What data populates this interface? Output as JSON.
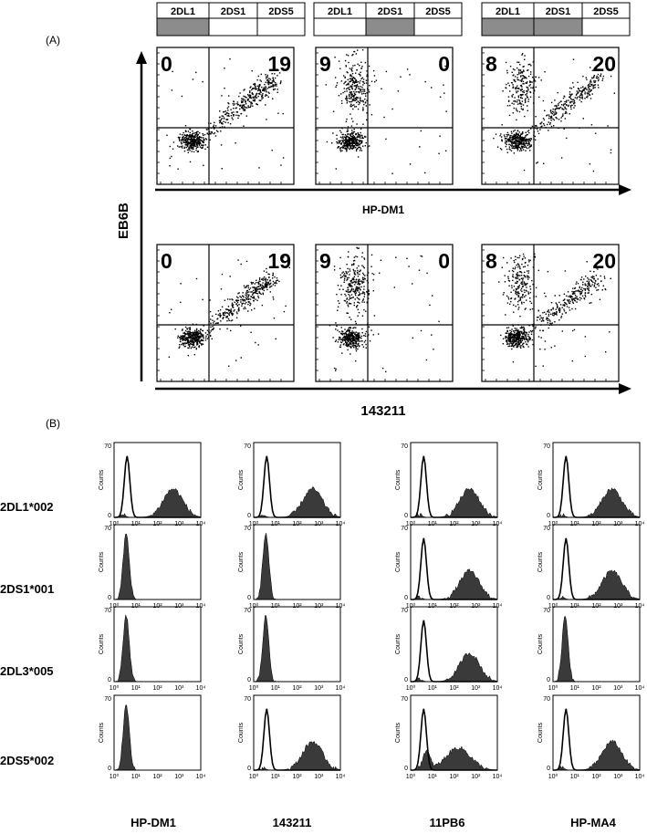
{
  "panel_a": {
    "label": "(A)",
    "y_axis_label": "EB6B",
    "rows": [
      {
        "x_axis_label": "HP-DM1"
      },
      {
        "x_axis_label": "143211"
      }
    ],
    "header_cells": [
      "2DL1",
      "2DS1",
      "2DS5"
    ],
    "columns": [
      {
        "shaded": [
          true,
          false,
          false
        ],
        "quadrant_ul": "0",
        "quadrant_ur": "19",
        "pattern": "diagonal"
      },
      {
        "shaded": [
          false,
          true,
          false
        ],
        "quadrant_ul": "9",
        "quadrant_ur": "0",
        "pattern": "vertical"
      },
      {
        "shaded": [
          true,
          true,
          false
        ],
        "quadrant_ul": "8",
        "quadrant_ur": "20",
        "pattern": "both"
      }
    ]
  },
  "panel_b": {
    "label": "(B)",
    "y_axis_title": "Counts",
    "y_max_tick": "70",
    "y_min_tick": "0",
    "x_tick_labels": [
      "10⁰",
      "10¹",
      "10²",
      "10³",
      "10⁴"
    ],
    "row_labels": [
      "2DL1*002",
      "2DS1*001",
      "2DL3*005",
      "2DS5*002"
    ],
    "column_labels": [
      "HP-DM1",
      "143211",
      "11PB6",
      "HP-MA4"
    ],
    "histograms": [
      [
        "pos",
        "pos",
        "pos",
        "pos"
      ],
      [
        "neg",
        "neg",
        "pos",
        "pos"
      ],
      [
        "neg",
        "neg",
        "pos",
        "neg"
      ],
      [
        "neg",
        "pos",
        "weak",
        "pos"
      ]
    ]
  },
  "colors": {
    "shade": "#8c8c8c",
    "fill": "#3a3a3a",
    "line": "#000000"
  }
}
